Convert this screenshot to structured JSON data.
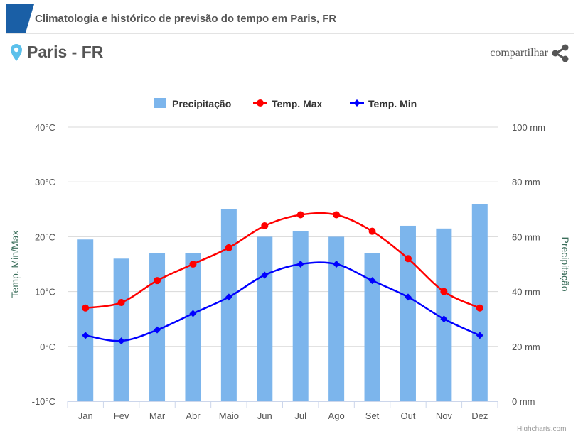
{
  "header": {
    "title": "Climatologia e histórico de previsão do tempo em Paris, FR"
  },
  "location": {
    "name": "Paris - FR",
    "icon": "map-pin-icon"
  },
  "share": {
    "label": "compartilhar",
    "icon": "share-icon"
  },
  "credit": "Highcharts.com",
  "chart_data": {
    "type": "bar+line",
    "categories": [
      "Jan",
      "Fev",
      "Mar",
      "Abr",
      "Maio",
      "Jun",
      "Jul",
      "Ago",
      "Set",
      "Out",
      "Nov",
      "Dez"
    ],
    "series": [
      {
        "name": "Precipitação",
        "type": "bar",
        "axis": "right",
        "color": "#7cb5ec",
        "values": [
          59,
          52,
          54,
          54,
          70,
          60,
          62,
          60,
          54,
          64,
          63,
          72
        ]
      },
      {
        "name": "Temp. Max",
        "type": "line",
        "axis": "left",
        "color": "#ff0000",
        "values": [
          7,
          8,
          12,
          15,
          18,
          22,
          24,
          24,
          21,
          16,
          10,
          7
        ]
      },
      {
        "name": "Temp. Min",
        "type": "line",
        "axis": "left",
        "color": "#0000ff",
        "values": [
          2,
          1,
          3,
          6,
          9,
          13,
          15,
          15,
          12,
          9,
          5,
          2
        ]
      }
    ],
    "left_axis": {
      "label": "Temp. Min/Max",
      "ylim": [
        -10,
        40
      ],
      "ticks": [
        "-10°C",
        "0°C",
        "10°C",
        "20°C",
        "30°C",
        "40°C"
      ]
    },
    "right_axis": {
      "label": "Precipitação",
      "ylim": [
        0,
        100
      ],
      "ticks": [
        "0 mm",
        "20 mm",
        "40 mm",
        "60 mm",
        "80 mm",
        "100 mm"
      ]
    },
    "grid": true,
    "legend": "top"
  }
}
